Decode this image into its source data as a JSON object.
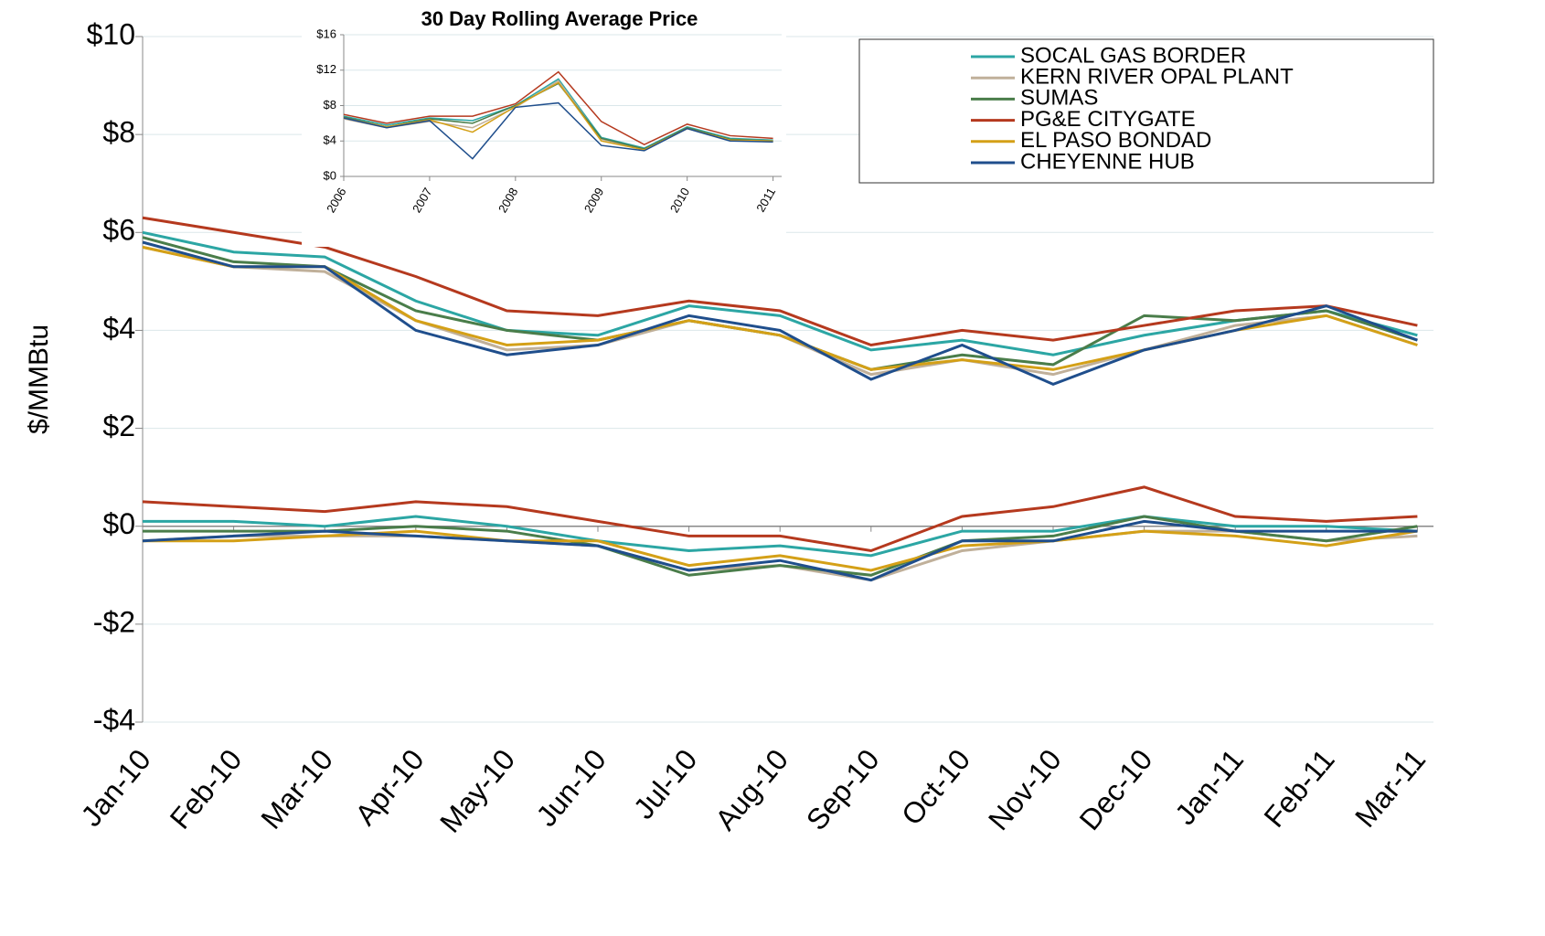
{
  "chart_data": [
    {
      "type": "line",
      "y_label": "$/MMBtu",
      "categories": [
        "Jan-10",
        "Feb-10",
        "Mar-10",
        "Apr-10",
        "May-10",
        "Jun-10",
        "Jul-10",
        "Aug-10",
        "Sep-10",
        "Oct-10",
        "Nov-10",
        "Dec-10",
        "Jan-11",
        "Feb-11",
        "Mar-11"
      ],
      "ylim": [
        -4,
        10
      ],
      "yticks": [
        {
          "value": -4,
          "label": "-$4"
        },
        {
          "value": -2,
          "label": "-$2"
        },
        {
          "value": 0,
          "label": "$0"
        },
        {
          "value": 2,
          "label": "$2"
        },
        {
          "value": 4,
          "label": "$4"
        },
        {
          "value": 6,
          "label": "$6"
        },
        {
          "value": 8,
          "label": "$8"
        },
        {
          "value": 10,
          "label": "$10"
        }
      ],
      "grid": true,
      "legend": "top-right",
      "series": [
        {
          "name": "SOCAL GAS BORDER",
          "color": "#2ca6a4",
          "values": [
            6.0,
            5.6,
            5.5,
            4.6,
            4.0,
            3.9,
            4.5,
            4.3,
            3.6,
            3.8,
            3.5,
            3.9,
            4.2,
            4.4,
            3.9
          ],
          "basis_values": [
            0.1,
            0.1,
            0.0,
            0.2,
            0.0,
            -0.3,
            -0.5,
            -0.4,
            -0.6,
            -0.1,
            -0.1,
            0.2,
            0.0,
            0.0,
            -0.1
          ]
        },
        {
          "name": "KERN RIVER OPAL PLANT",
          "color": "#c0b09a",
          "values": [
            5.7,
            5.3,
            5.2,
            4.2,
            3.6,
            3.7,
            4.2,
            3.9,
            3.1,
            3.4,
            3.1,
            3.6,
            4.1,
            4.3,
            3.7
          ],
          "basis_values": [
            -0.3,
            -0.2,
            -0.2,
            -0.2,
            -0.3,
            -0.4,
            -0.9,
            -0.8,
            -1.1,
            -0.5,
            -0.3,
            -0.1,
            -0.1,
            -0.3,
            -0.2
          ]
        },
        {
          "name": "SUMAS",
          "color": "#4a7d4a",
          "values": [
            5.9,
            5.4,
            5.3,
            4.4,
            4.0,
            3.8,
            4.2,
            3.9,
            3.2,
            3.5,
            3.3,
            4.3,
            4.2,
            4.4,
            3.8
          ],
          "basis_values": [
            -0.1,
            -0.1,
            -0.1,
            0.0,
            -0.1,
            -0.4,
            -1.0,
            -0.8,
            -1.0,
            -0.3,
            -0.2,
            0.2,
            -0.1,
            -0.3,
            0.0
          ]
        },
        {
          "name": "PG&E CITYGATE",
          "color": "#b5391e",
          "values": [
            6.3,
            6.0,
            5.7,
            5.1,
            4.4,
            4.3,
            4.6,
            4.4,
            3.7,
            4.0,
            3.8,
            4.1,
            4.4,
            4.5,
            4.1
          ],
          "basis_values": [
            0.5,
            0.4,
            0.3,
            0.5,
            0.4,
            0.1,
            -0.2,
            -0.2,
            -0.5,
            0.2,
            0.4,
            0.8,
            0.2,
            0.1,
            0.2
          ]
        },
        {
          "name": "EL PASO BONDAD",
          "color": "#d4a017",
          "values": [
            5.7,
            5.3,
            5.3,
            4.2,
            3.7,
            3.8,
            4.2,
            3.9,
            3.2,
            3.4,
            3.2,
            3.6,
            4.0,
            4.3,
            3.7
          ],
          "basis_values": [
            -0.3,
            -0.3,
            -0.2,
            -0.1,
            -0.3,
            -0.3,
            -0.8,
            -0.6,
            -0.9,
            -0.4,
            -0.3,
            -0.1,
            -0.2,
            -0.4,
            -0.1
          ]
        },
        {
          "name": "CHEYENNE HUB",
          "color": "#1f4e8c",
          "values": [
            5.8,
            5.3,
            5.3,
            4.0,
            3.5,
            3.7,
            4.3,
            4.0,
            3.0,
            3.7,
            2.9,
            3.6,
            4.0,
            4.5,
            3.8
          ],
          "basis_values": [
            -0.3,
            -0.2,
            -0.1,
            -0.2,
            -0.3,
            -0.4,
            -0.9,
            -0.7,
            -1.1,
            -0.3,
            -0.3,
            0.1,
            -0.1,
            -0.1,
            -0.1
          ]
        }
      ]
    },
    {
      "type": "line",
      "title": "30 Day Rolling Average Price",
      "x": [
        2006,
        2006.5,
        2007,
        2007.5,
        2008,
        2008.5,
        2009,
        2009.5,
        2010,
        2010.5,
        2011
      ],
      "xlim": [
        2006,
        2011.1
      ],
      "xticks": [
        2006,
        2007,
        2008,
        2009,
        2010,
        2011
      ],
      "ylim": [
        0,
        16
      ],
      "yticks": [
        {
          "value": 0,
          "label": "$0"
        },
        {
          "value": 4,
          "label": "$4"
        },
        {
          "value": 8,
          "label": "$8"
        },
        {
          "value": 12,
          "label": "$12"
        },
        {
          "value": 16,
          "label": "$16"
        }
      ],
      "grid": true,
      "series": [
        {
          "color": "#2ca6a4",
          "values": [
            6.8,
            5.8,
            6.6,
            6.3,
            8.0,
            11.0,
            4.4,
            3.2,
            5.6,
            4.3,
            4.1
          ]
        },
        {
          "color": "#c0b09a",
          "values": [
            6.5,
            5.5,
            6.2,
            5.5,
            7.8,
            10.8,
            4.2,
            3.0,
            5.4,
            4.1,
            3.9
          ]
        },
        {
          "color": "#4a7d4a",
          "values": [
            6.7,
            5.6,
            6.5,
            6.0,
            8.0,
            10.5,
            4.3,
            3.1,
            5.5,
            4.2,
            4.0
          ]
        },
        {
          "color": "#b5391e",
          "values": [
            7.0,
            6.0,
            6.8,
            6.8,
            8.2,
            11.8,
            6.2,
            3.6,
            5.9,
            4.6,
            4.3
          ]
        },
        {
          "color": "#d4a017",
          "values": [
            6.6,
            5.6,
            6.4,
            5.0,
            7.9,
            10.6,
            4.0,
            3.0,
            5.4,
            4.1,
            4.0
          ]
        },
        {
          "color": "#1f4e8c",
          "values": [
            6.6,
            5.5,
            6.3,
            2.0,
            7.8,
            8.3,
            3.5,
            2.9,
            5.4,
            4.0,
            3.9
          ]
        }
      ]
    }
  ]
}
